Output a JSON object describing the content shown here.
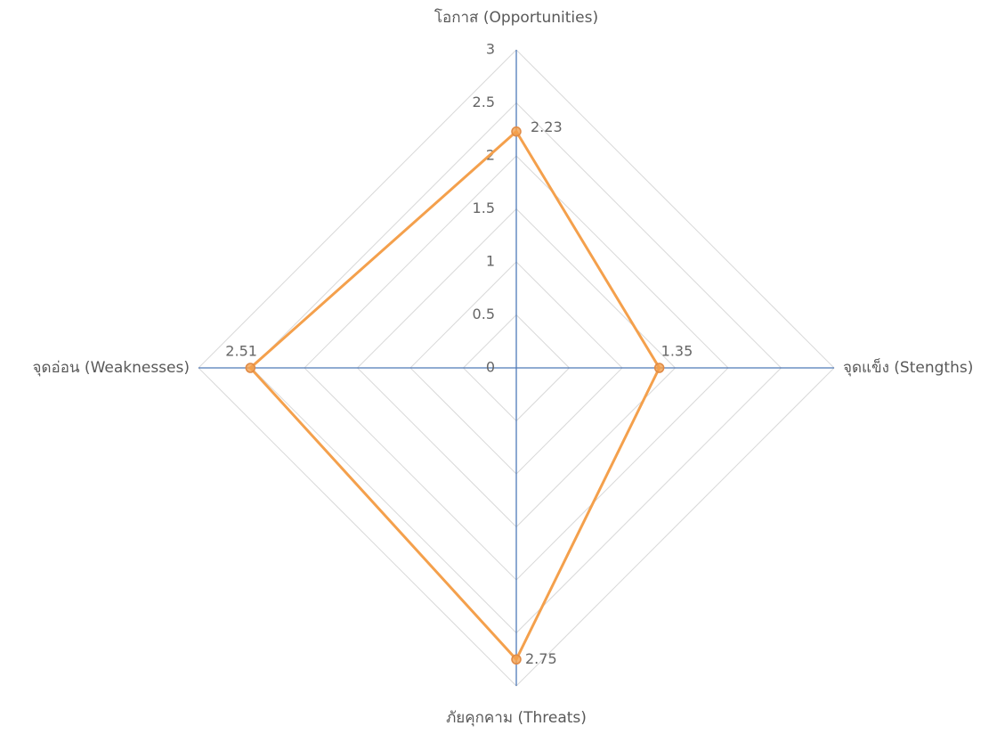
{
  "chart_data": {
    "type": "radar",
    "categories": [
      "โอกาส (Opportunities)",
      "จุดแข็ง (Stengths)",
      "ภัยคุกคาม (Threats)",
      "จุดอ่อน (Weaknesses)"
    ],
    "values": [
      2.23,
      1.35,
      2.75,
      2.51
    ],
    "color": "#f4a04c",
    "axis_color": "#4f7ab8",
    "grid_color": "#d9d9d9",
    "ylim": [
      0,
      3
    ],
    "yticks": [
      0,
      0.5,
      1,
      1.5,
      2,
      2.5,
      3
    ],
    "grid": true
  }
}
